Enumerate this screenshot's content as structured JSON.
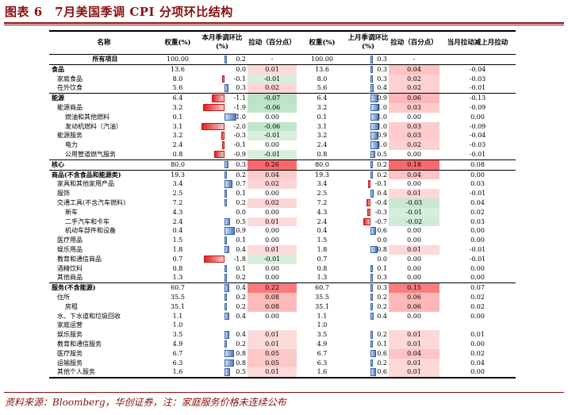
{
  "title": "图表 6　7月美国季调 CPI 分项环比结构",
  "source": "资料来源：Bloomberg，华创证券，注：家庭服务价格未连续公布",
  "headers": {
    "name": "名称",
    "weight_cur": "权重(%)",
    "mom_cur": "本月季调环比(%)",
    "pull_cur": "拉动（百分点）",
    "weight_prev": "权重(%)",
    "mom_prev": "上月季调环比(%)",
    "pull_prev": "拉动（百分点）",
    "pull_diff": "当月拉动减上月拉动"
  },
  "colors": {
    "title": "#8a1010",
    "pos_bar": "#4e79c0",
    "neg_bar": "#e02020",
    "heat_pos": "#f8696b",
    "heat_neg": "#63be7b"
  },
  "rows": [
    {
      "name": "所有项目",
      "indent": 0,
      "bold": false,
      "sep": "grp",
      "w1": "100.00",
      "m1": "0.2",
      "p1": "-",
      "w2": "100.00",
      "m2": "0.3",
      "p2": "-",
      "d": ""
    },
    {
      "name": "食品",
      "indent": 0,
      "bold": true,
      "sep": "",
      "w1": "13.6",
      "m1": "0.0",
      "p1": "0.01",
      "w2": "13.6",
      "m2": "0.3",
      "p2": "0.04",
      "d": "-0.04"
    },
    {
      "name": "家庭食品",
      "indent": 1,
      "bold": false,
      "sep": "",
      "w1": "8.0",
      "m1": "-0.1",
      "p1": "-0.01",
      "w2": "8.0",
      "m2": "0.3",
      "p2": "0.02",
      "d": "-0.03"
    },
    {
      "name": "在外饮食",
      "indent": 1,
      "bold": false,
      "sep": "",
      "w1": "5.6",
      "m1": "0.3",
      "p1": "0.02",
      "w2": "5.6",
      "m2": "0.4",
      "p2": "0.02",
      "d": "-0.01"
    },
    {
      "name": "能源",
      "indent": 0,
      "bold": true,
      "sep": "top",
      "w1": "6.4",
      "m1": "-1.1",
      "p1": "-0.07",
      "w2": "6.4",
      "m2": "0.9",
      "p2": "0.06",
      "d": "-0.13"
    },
    {
      "name": "能源商品",
      "indent": 1,
      "bold": false,
      "sep": "",
      "w1": "3.2",
      "m1": "-1.9",
      "p1": "-0.06",
      "w2": "3.2",
      "m2": "1.0",
      "p2": "0.03",
      "d": "-0.09"
    },
    {
      "name": "燃油和其他燃料",
      "indent": 2,
      "bold": false,
      "sep": "",
      "w1": "0.1",
      "m1": "1.0",
      "p1": "0.00",
      "w2": "0.1",
      "m2": "1.0",
      "p2": "0.00",
      "d": "0.00"
    },
    {
      "name": "发动机燃料（汽油）",
      "indent": 2,
      "bold": false,
      "sep": "",
      "w1": "3.1",
      "m1": "-2.0",
      "p1": "-0.06",
      "w2": "3.1",
      "m2": "1.0",
      "p2": "0.03",
      "d": "-0.09"
    },
    {
      "name": "能源服务",
      "indent": 1,
      "bold": false,
      "sep": "",
      "w1": "3.2",
      "m1": "-0.3",
      "p1": "-0.01",
      "w2": "3.2",
      "m2": "0.9",
      "p2": "0.03",
      "d": "-0.04"
    },
    {
      "name": "电力",
      "indent": 2,
      "bold": false,
      "sep": "",
      "w1": "2.4",
      "m1": "-0.1",
      "p1": "0.00",
      "w2": "2.4",
      "m2": "1.0",
      "p2": "0.02",
      "d": "-0.03"
    },
    {
      "name": "公用管道燃气服务",
      "indent": 2,
      "bold": false,
      "sep": "",
      "w1": "0.8",
      "m1": "-0.9",
      "p1": "-0.01",
      "w2": "0.8",
      "m2": "0.5",
      "p2": "0.00",
      "d": "-0.01"
    },
    {
      "name": "核心",
      "indent": 0,
      "bold": true,
      "sep": "top",
      "w1": "80.0",
      "m1": "0.3",
      "p1": "0.26",
      "w2": "80.0",
      "m2": "0.2",
      "p2": "0.18",
      "d": "0.08"
    },
    {
      "name": "商品(不含食品和能源类)",
      "indent": 0,
      "bold": true,
      "sep": "top",
      "w1": "19.3",
      "m1": "0.2",
      "p1": "0.04",
      "w2": "19.3",
      "m2": "0.2",
      "p2": "0.04",
      "d": "0.00"
    },
    {
      "name": "家具和其他家用产品",
      "indent": 1,
      "bold": false,
      "sep": "",
      "w1": "3.4",
      "m1": "0.7",
      "p1": "0.02",
      "w2": "3.4",
      "m2": "-0.1",
      "p2": "0.00",
      "d": "0.03"
    },
    {
      "name": "服饰",
      "indent": 1,
      "bold": false,
      "sep": "",
      "w1": "2.5",
      "m1": "0.1",
      "p1": "0.00",
      "w2": "2.5",
      "m2": "0.4",
      "p2": "0.01",
      "d": "-0.01"
    },
    {
      "name": "交通工具(不含汽车燃料)",
      "indent": 1,
      "bold": false,
      "sep": "",
      "w1": "7.2",
      "m1": "0.2",
      "p1": "0.02",
      "w2": "7.2",
      "m2": "-0.4",
      "p2": "-0.03",
      "d": "0.04"
    },
    {
      "name": "新车",
      "indent": 2,
      "bold": false,
      "sep": "",
      "w1": "4.3",
      "m1": "0.0",
      "p1": "0.00",
      "w2": "4.3",
      "m2": "-0.3",
      "p2": "-0.01",
      "d": "0.02"
    },
    {
      "name": "二手汽车和卡车",
      "indent": 2,
      "bold": false,
      "sep": "",
      "w1": "2.4",
      "m1": "0.5",
      "p1": "0.01",
      "w2": "2.4",
      "m2": "-0.7",
      "p2": "-0.02",
      "d": "0.03"
    },
    {
      "name": "机动车部件和设备",
      "indent": 2,
      "bold": false,
      "sep": "",
      "w1": "0.4",
      "m1": "0.9",
      "p1": "0.00",
      "w2": "0.4",
      "m2": "0.6",
      "p2": "0.00",
      "d": "0.00"
    },
    {
      "name": "医疗用品",
      "indent": 1,
      "bold": false,
      "sep": "",
      "w1": "1.5",
      "m1": "0.1",
      "p1": "0.00",
      "w2": "1.5",
      "m2": "0.0",
      "p2": "0.00",
      "d": "0.00"
    },
    {
      "name": "娱乐用品",
      "indent": 1,
      "bold": false,
      "sep": "",
      "w1": "1.8",
      "m1": "0.4",
      "p1": "0.01",
      "w2": "1.8",
      "m2": "0.8",
      "p2": "0.01",
      "d": "-0.01"
    },
    {
      "name": "教育和通信商品",
      "indent": 1,
      "bold": false,
      "sep": "",
      "w1": "0.7",
      "m1": "-1.8",
      "p1": "-0.01",
      "w2": "0.7",
      "m2": "0.0",
      "p2": "0.00",
      "d": "-0.01"
    },
    {
      "name": "酒精饮料",
      "indent": 1,
      "bold": false,
      "sep": "",
      "w1": "0.8",
      "m1": "0.1",
      "p1": "0.00",
      "w2": "0.8",
      "m2": "0.1",
      "p2": "0.00",
      "d": "0.00"
    },
    {
      "name": "其他商品",
      "indent": 1,
      "bold": false,
      "sep": "",
      "w1": "1.3",
      "m1": "0.2",
      "p1": "0.00",
      "w2": "1.3",
      "m2": "0.3",
      "p2": "0.00",
      "d": "0.00"
    },
    {
      "name": "服务(不含能源)",
      "indent": 0,
      "bold": true,
      "sep": "top",
      "w1": "60.7",
      "m1": "0.4",
      "p1": "0.22",
      "w2": "60.7",
      "m2": "0.3",
      "p2": "0.15",
      "d": "0.07"
    },
    {
      "name": "住所",
      "indent": 1,
      "bold": false,
      "sep": "",
      "w1": "35.5",
      "m1": "0.2",
      "p1": "0.08",
      "w2": "35.5",
      "m2": "0.2",
      "p2": "0.06",
      "d": "0.02"
    },
    {
      "name": "房租",
      "indent": 2,
      "bold": false,
      "sep": "",
      "w1": "35.1",
      "m1": "0.2",
      "p1": "0.08",
      "w2": "35.1",
      "m2": "0.2",
      "p2": "0.06",
      "d": "0.02"
    },
    {
      "name": "水、下水道和垃圾回收",
      "indent": 1,
      "bold": false,
      "sep": "",
      "w1": "1.1",
      "m1": "0.4",
      "p1": "0.00",
      "w2": "1.1",
      "m2": "0.4",
      "p2": "0.00",
      "d": "0.00"
    },
    {
      "name": "家庭运营",
      "indent": 1,
      "bold": false,
      "sep": "",
      "w1": "1.0",
      "m1": "",
      "p1": "",
      "w2": "1.0",
      "m2": "",
      "p2": "",
      "d": ""
    },
    {
      "name": "娱乐服务",
      "indent": 1,
      "bold": false,
      "sep": "",
      "w1": "3.5",
      "m1": "0.4",
      "p1": "0.01",
      "w2": "3.5",
      "m2": "0.2",
      "p2": "0.01",
      "d": "0.01"
    },
    {
      "name": "教育和通信服务",
      "indent": 1,
      "bold": false,
      "sep": "",
      "w1": "4.9",
      "m1": "0.2",
      "p1": "0.01",
      "w2": "4.9",
      "m2": "0.1",
      "p2": "0.01",
      "d": "0.00"
    },
    {
      "name": "医疗服务",
      "indent": 1,
      "bold": false,
      "sep": "",
      "w1": "6.7",
      "m1": "0.8",
      "p1": "0.05",
      "w2": "6.7",
      "m2": "0.6",
      "p2": "0.04",
      "d": "0.02"
    },
    {
      "name": "运输服务",
      "indent": 1,
      "bold": false,
      "sep": "",
      "w1": "6.3",
      "m1": "0.8",
      "p1": "0.05",
      "w2": "6.3",
      "m2": "0.2",
      "p2": "0.01",
      "d": "0.04"
    },
    {
      "name": "其他个人服务",
      "indent": 1,
      "bold": false,
      "sep": "last",
      "w1": "1.6",
      "m1": "0.5",
      "p1": "0.01",
      "w2": "1.6",
      "m2": "0.6",
      "p2": "0.01",
      "d": "0.00"
    }
  ]
}
